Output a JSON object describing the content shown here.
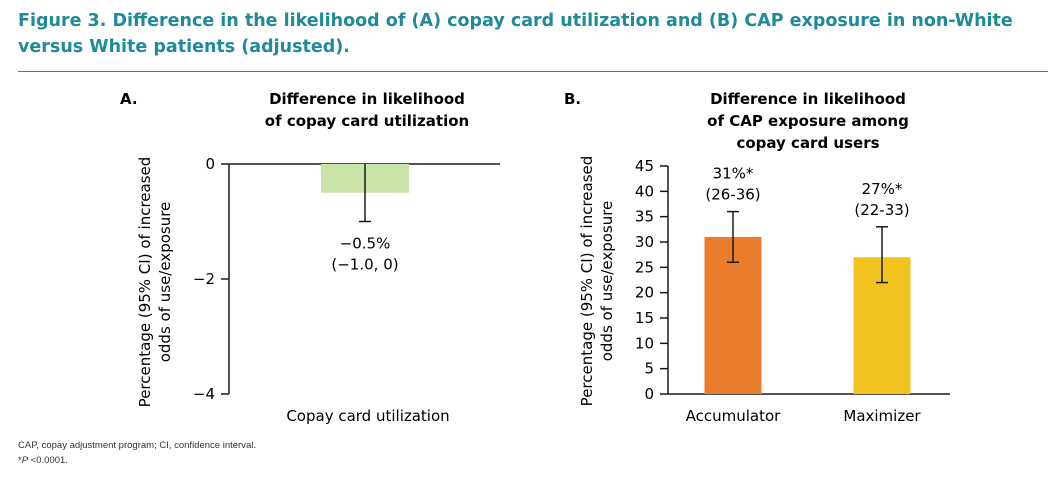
{
  "figure": {
    "title": "Figure 3. Difference in the likelihood of (A) copay card utilization and (B) CAP exposure in non-White versus White patients (adjusted)."
  },
  "footnotes": {
    "line1": "CAP, copay adjustment program; CI, confidence interval.",
    "line2_prefix": "*",
    "line2_italic": "P",
    "line2_suffix": " <0.0001."
  },
  "colors": {
    "title": "#1f8a99",
    "bar_a": "#c9e3a9",
    "accumulator": "#ea7d2b",
    "maximizer": "#f2c31f"
  },
  "chart_data": [
    {
      "panel": "A.",
      "type": "bar",
      "title_lines": [
        "Difference in likelihood",
        "of copay card utilization"
      ],
      "ylabel_lines": [
        "Percentage (95% CI) of increased",
        "odds of use/exposure"
      ],
      "xlabel": "Copay card utilization",
      "ylim": [
        -4,
        0
      ],
      "yticks": [
        0,
        -2,
        -4
      ],
      "ytick_labels": [
        "0",
        "−2",
        "−4"
      ],
      "categories": [
        ""
      ],
      "values": [
        -0.5
      ],
      "ci": [
        [
          -1.0,
          0
        ]
      ],
      "label_lines": [
        [
          "−0.5%",
          "(−1.0, 0)"
        ]
      ],
      "bar_colors": [
        "#c9e3a9"
      ]
    },
    {
      "panel": "B.",
      "type": "bar",
      "title_lines": [
        "Difference in likelihood",
        "of CAP exposure among",
        "copay card users"
      ],
      "ylabel_lines": [
        "Percentage (95% CI) of increased",
        "odds of use/exposure"
      ],
      "xlabel": "",
      "ylim": [
        0,
        45
      ],
      "yticks": [
        0,
        5,
        10,
        15,
        20,
        25,
        30,
        35,
        40,
        45
      ],
      "ytick_labels": [
        "0",
        "5",
        "10",
        "15",
        "20",
        "25",
        "30",
        "35",
        "40",
        "45"
      ],
      "categories": [
        "Accumulator",
        "Maximizer"
      ],
      "values": [
        31,
        27
      ],
      "ci": [
        [
          26,
          36
        ],
        [
          22,
          33
        ]
      ],
      "label_lines": [
        [
          "31%*",
          "(26-36)"
        ],
        [
          "27%*",
          "(22-33)"
        ]
      ],
      "bar_colors": [
        "#ea7d2b",
        "#f2c31f"
      ]
    }
  ]
}
